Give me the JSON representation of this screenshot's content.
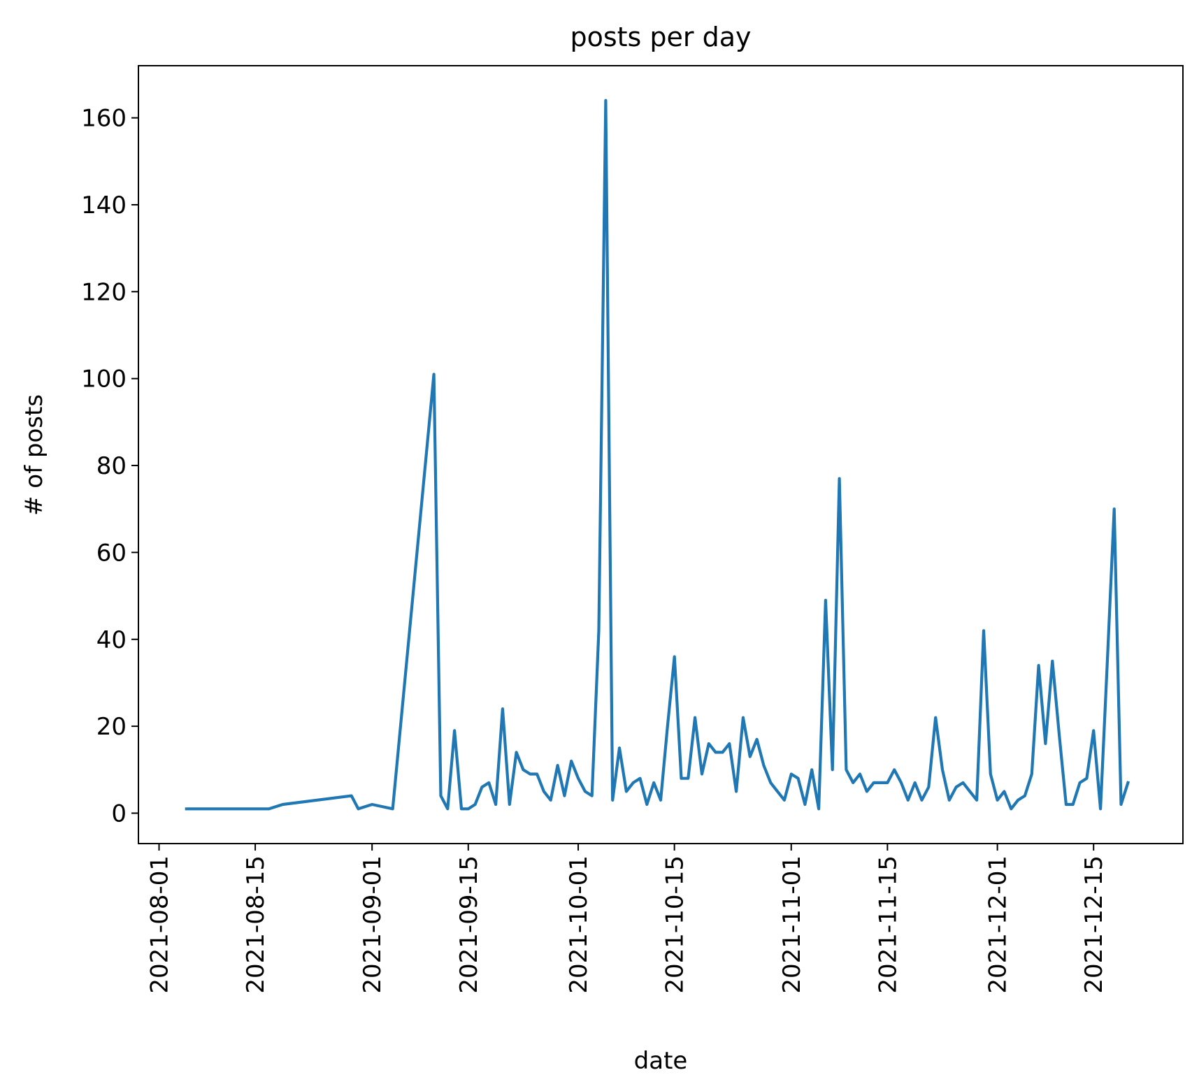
{
  "chart_data": {
    "type": "line",
    "title": "posts per day",
    "xlabel": "date",
    "ylabel": "# of posts",
    "grid": false,
    "legend": "none",
    "colors": {
      "line": "#1f77b4",
      "axes": "#000000",
      "background": "#ffffff"
    },
    "xlim": [
      "2021-07-29",
      "2021-12-28"
    ],
    "ylim": [
      -7,
      172
    ],
    "xticks": [
      "2021-08-01",
      "2021-08-15",
      "2021-09-01",
      "2021-09-15",
      "2021-10-01",
      "2021-10-15",
      "2021-11-01",
      "2021-11-15",
      "2021-12-01",
      "2021-12-15"
    ],
    "yticks": [
      0,
      20,
      40,
      60,
      80,
      100,
      120,
      140,
      160
    ],
    "series": [
      {
        "x": [
          "2021-08-05",
          "2021-08-17",
          "2021-08-19",
          "2021-08-29",
          "2021-08-30",
          "2021-09-01",
          "2021-09-04",
          "2021-09-10",
          "2021-09-11",
          "2021-09-12",
          "2021-09-13",
          "2021-09-14",
          "2021-09-15",
          "2021-09-16",
          "2021-09-17",
          "2021-09-18",
          "2021-09-19",
          "2021-09-20",
          "2021-09-21",
          "2021-09-22",
          "2021-09-23",
          "2021-09-24",
          "2021-09-25",
          "2021-09-26",
          "2021-09-27",
          "2021-09-28",
          "2021-09-29",
          "2021-09-30",
          "2021-10-01",
          "2021-10-02",
          "2021-10-03",
          "2021-10-04",
          "2021-10-05",
          "2021-10-06",
          "2021-10-07",
          "2021-10-08",
          "2021-10-09",
          "2021-10-10",
          "2021-10-11",
          "2021-10-12",
          "2021-10-13",
          "2021-10-14",
          "2021-10-15",
          "2021-10-16",
          "2021-10-17",
          "2021-10-18",
          "2021-10-19",
          "2021-10-20",
          "2021-10-21",
          "2021-10-22",
          "2021-10-23",
          "2021-10-24",
          "2021-10-25",
          "2021-10-26",
          "2021-10-27",
          "2021-10-28",
          "2021-10-29",
          "2021-10-30",
          "2021-10-31",
          "2021-11-01",
          "2021-11-02",
          "2021-11-03",
          "2021-11-04",
          "2021-11-05",
          "2021-11-06",
          "2021-11-07",
          "2021-11-08",
          "2021-11-09",
          "2021-11-10",
          "2021-11-11",
          "2021-11-12",
          "2021-11-13",
          "2021-11-14",
          "2021-11-15",
          "2021-11-16",
          "2021-11-17",
          "2021-11-18",
          "2021-11-19",
          "2021-11-20",
          "2021-11-21",
          "2021-11-22",
          "2021-11-23",
          "2021-11-24",
          "2021-11-25",
          "2021-11-26",
          "2021-11-27",
          "2021-11-28",
          "2021-11-29",
          "2021-11-30",
          "2021-12-01",
          "2021-12-02",
          "2021-12-03",
          "2021-12-04",
          "2021-12-05",
          "2021-12-06",
          "2021-12-07",
          "2021-12-08",
          "2021-12-09",
          "2021-12-10",
          "2021-12-11",
          "2021-12-12",
          "2021-12-13",
          "2021-12-14",
          "2021-12-15",
          "2021-12-16",
          "2021-12-17",
          "2021-12-18",
          "2021-12-19",
          "2021-12-20"
        ],
        "values": [
          1,
          1,
          2,
          4,
          1,
          2,
          1,
          101,
          4,
          1,
          19,
          1,
          1,
          2,
          6,
          7,
          2,
          24,
          2,
          14,
          10,
          9,
          9,
          5,
          3,
          11,
          4,
          12,
          8,
          5,
          4,
          42,
          164,
          3,
          15,
          5,
          7,
          8,
          2,
          7,
          3,
          20,
          36,
          8,
          8,
          22,
          9,
          16,
          14,
          14,
          16,
          5,
          22,
          13,
          17,
          11,
          7,
          5,
          3,
          9,
          8,
          2,
          10,
          1,
          49,
          10,
          77,
          10,
          7,
          9,
          5,
          7,
          7,
          7,
          10,
          7,
          3,
          7,
          3,
          6,
          22,
          10,
          3,
          6,
          7,
          5,
          3,
          42,
          9,
          3,
          5,
          1,
          3,
          4,
          9,
          34,
          16,
          35,
          18,
          2,
          2,
          7,
          8,
          19,
          1,
          35,
          70,
          2,
          7
        ]
      }
    ]
  }
}
